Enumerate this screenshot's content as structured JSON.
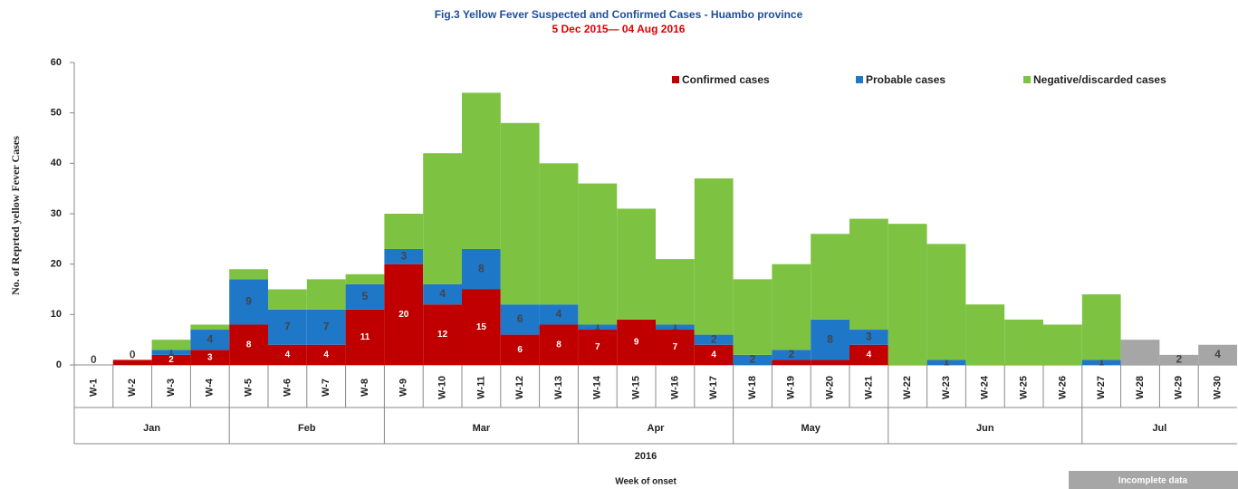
{
  "chart_data": {
    "type": "stacked_bar",
    "title": "Fig.3 Yellow Fever Suspected and Confirmed Cases - Huambo province",
    "subtitle": "5 Dec 2015—  04 Aug 2016",
    "y_label": "No. of Reprted yellow Fever Cases",
    "x_label": "Week of onset",
    "year": "2016",
    "categories": [
      "W-1",
      "W-2",
      "W-3",
      "W-4",
      "W-5",
      "W-6",
      "W-7",
      "W-8",
      "W-9",
      "W-10",
      "W-11",
      "W-12",
      "W-13",
      "W-14",
      "W-15",
      "W-16",
      "W-17",
      "W-18",
      "W-19",
      "W-20",
      "W-21",
      "W-22",
      "W-23",
      "W-24",
      "W-25",
      "W-26",
      "W-27",
      "W-28",
      "W-29",
      "W-30"
    ],
    "month_groups": [
      {
        "label": "Jan",
        "from": "W-1",
        "to": "W-4"
      },
      {
        "label": "Feb",
        "from": "W-5",
        "to": "W-8"
      },
      {
        "label": "Mar",
        "from": "W-9",
        "to": "W-13"
      },
      {
        "label": "Apr",
        "from": "W-14",
        "to": "W-17"
      },
      {
        "label": "May",
        "from": "W-18",
        "to": "W-21"
      },
      {
        "label": "Jun",
        "from": "W-22",
        "to": "W-26"
      },
      {
        "label": "Jul",
        "from": "W-27",
        "to": "W-30"
      }
    ],
    "series": [
      {
        "name": "Confirmed cases",
        "color": "#c00000",
        "values": [
          0,
          1,
          2,
          3,
          8,
          4,
          4,
          11,
          20,
          12,
          15,
          6,
          8,
          7,
          9,
          7,
          4,
          0,
          1,
          1,
          4,
          0,
          0,
          0,
          0,
          0,
          0,
          0,
          0,
          0
        ]
      },
      {
        "name": "Probable cases",
        "color": "#1f77c8",
        "values": [
          0,
          0,
          1,
          4,
          9,
          7,
          7,
          5,
          3,
          4,
          8,
          6,
          4,
          1,
          0,
          1,
          2,
          2,
          2,
          8,
          3,
          0,
          1,
          0,
          0,
          0,
          1,
          0,
          2,
          4
        ]
      },
      {
        "name": "Negative/discarded cases",
        "color": "#7ec242",
        "values": [
          0,
          0,
          2,
          1,
          2,
          4,
          6,
          2,
          7,
          26,
          31,
          36,
          28,
          28,
          22,
          13,
          31,
          15,
          17,
          17,
          22,
          28,
          23,
          12,
          9,
          8,
          13,
          5,
          0,
          0
        ]
      }
    ],
    "incomplete": {
      "label": "Incomplete data",
      "from": "W-28",
      "color": "#a6a6a6"
    },
    "ylim": [
      0,
      60
    ],
    "yticks": [
      0,
      10,
      20,
      30,
      40,
      50,
      60
    ]
  }
}
